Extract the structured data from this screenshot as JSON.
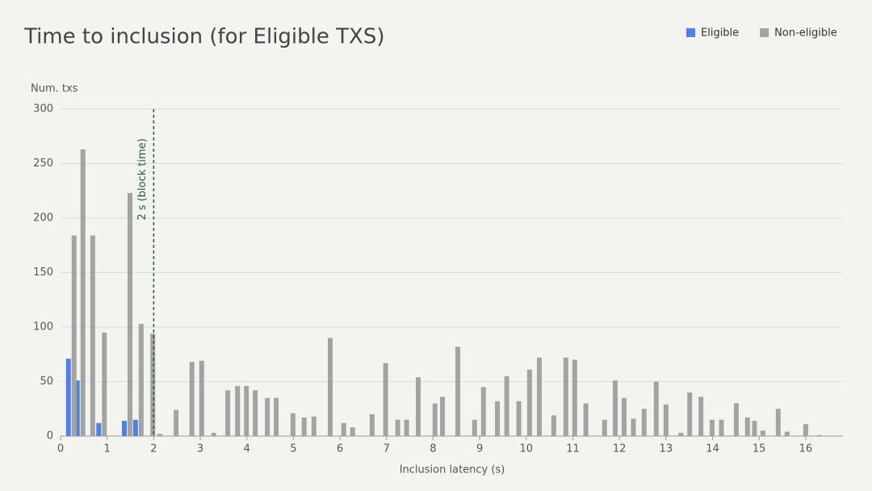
{
  "chart_data": {
    "type": "bar",
    "title": "Time to inclusion (for Eligible TXS)",
    "y_label": "Num. txs",
    "x_label": "Inclusion latency (s)",
    "x": [
      0.23,
      0.42,
      0.63,
      0.88,
      1.43,
      1.67,
      1.92,
      2.07,
      2.42,
      2.76,
      2.97,
      3.23,
      3.53,
      3.74,
      3.93,
      4.12,
      4.38,
      4.57,
      4.93,
      5.17,
      5.38,
      5.73,
      6.02,
      6.21,
      6.63,
      6.92,
      7.18,
      7.37,
      7.62,
      7.98,
      8.14,
      8.47,
      8.83,
      9.02,
      9.32,
      9.52,
      9.78,
      10.01,
      10.22,
      10.53,
      10.79,
      10.98,
      11.22,
      11.62,
      11.85,
      12.04,
      12.24,
      12.47,
      12.73,
      12.94,
      13.26,
      13.45,
      13.69,
      13.93,
      14.13,
      14.45,
      14.69,
      14.84,
      15.02,
      15.35,
      15.54,
      15.94,
      16.23
    ],
    "series": [
      {
        "name": "Eligible",
        "color": "#4e80e6",
        "values": [
          71,
          51,
          null,
          12,
          14,
          15,
          null,
          null,
          null,
          null,
          null,
          null,
          null,
          null,
          null,
          null,
          null,
          null,
          null,
          null,
          null,
          null,
          null,
          null,
          null,
          null,
          null,
          null,
          null,
          null,
          null,
          null,
          null,
          null,
          null,
          null,
          null,
          null,
          null,
          null,
          null,
          null,
          null,
          null,
          null,
          null,
          null,
          null,
          null,
          null,
          null,
          null,
          null,
          null,
          null,
          null,
          null,
          null,
          null,
          null,
          null,
          null,
          null
        ]
      },
      {
        "name": "Non-eligible",
        "color": "#a3a3a1",
        "values": [
          184,
          263,
          184,
          95,
          223,
          103,
          94,
          2,
          24,
          68,
          69,
          3,
          42,
          46,
          46,
          42,
          35,
          35,
          21,
          17,
          18,
          90,
          12,
          8,
          20,
          67,
          15,
          15,
          54,
          30,
          36,
          82,
          15,
          45,
          32,
          55,
          32,
          61,
          72,
          19,
          72,
          70,
          30,
          15,
          51,
          35,
          16,
          25,
          50,
          29,
          3,
          40,
          36,
          15,
          15,
          30,
          17,
          14,
          5,
          25,
          4,
          11,
          1
        ]
      }
    ],
    "xlim": [
      0,
      16.8
    ],
    "xticks": [
      0,
      1,
      2,
      3,
      4,
      5,
      6,
      7,
      8,
      9,
      10,
      11,
      12,
      13,
      14,
      15,
      16
    ],
    "ylim": [
      0,
      300
    ],
    "yticks": [
      0,
      50,
      100,
      150,
      200,
      250,
      300
    ],
    "grid": true,
    "annotation": {
      "x": 2,
      "label": "2 s (block time)",
      "color": "#1f5f4a"
    }
  }
}
